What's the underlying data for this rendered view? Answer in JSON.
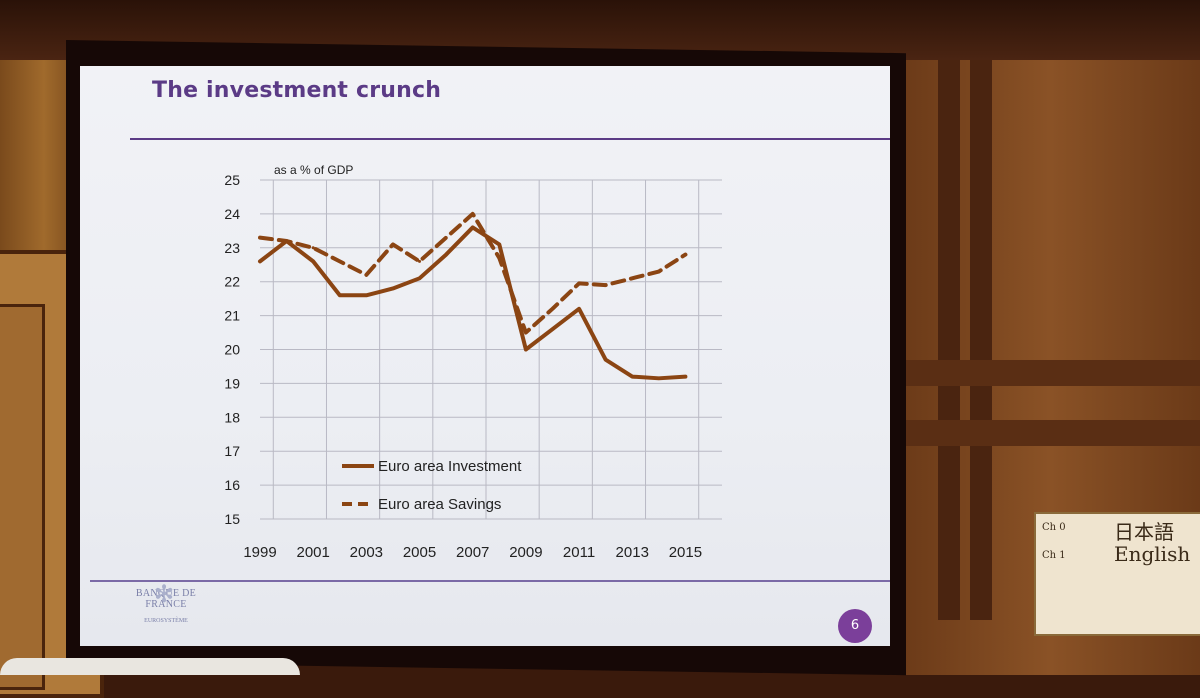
{
  "slide": {
    "title": "The investment crunch",
    "logo_text": "BANQUE DE FRANCE",
    "logo_sub": "EUROSYSTÈME",
    "page_number": "6"
  },
  "sign": {
    "ch0_label": "Ch 0",
    "ch0_lang": "日本語",
    "ch1_label": "Ch 1",
    "ch1_lang": "English"
  },
  "colors": {
    "series": "#8b4513",
    "title": "#5b3b86",
    "grid": "#b9b9c4"
  },
  "chart_data": {
    "type": "line",
    "title": "The investment crunch",
    "ylabel": "as a % of GDP",
    "xlabel": "",
    "ylim": [
      15,
      25
    ],
    "yticks": [
      "15",
      "16",
      "17",
      "18",
      "19",
      "20",
      "21",
      "22",
      "23",
      "24",
      "25"
    ],
    "xlim": [
      1999,
      2016
    ],
    "xticks": [
      "1999",
      "2001",
      "2003",
      "2005",
      "2007",
      "2009",
      "2011",
      "2013",
      "2015"
    ],
    "grid": true,
    "legend_position": "lower-left",
    "series": [
      {
        "name": "Euro area Investment",
        "style": "solid",
        "x": [
          1999,
          2000,
          2001,
          2002,
          2003,
          2004,
          2005,
          2006,
          2007,
          2008,
          2009,
          2010,
          2011,
          2012,
          2013,
          2014,
          2015
        ],
        "values": [
          22.6,
          23.2,
          22.6,
          21.6,
          21.6,
          21.8,
          22.1,
          22.8,
          23.6,
          23.1,
          20.0,
          20.6,
          21.2,
          19.7,
          19.2,
          19.15,
          19.2
        ]
      },
      {
        "name": "Euro area Savings",
        "style": "dashed",
        "x": [
          1999,
          2000,
          2001,
          2002,
          2003,
          2004,
          2005,
          2006,
          2007,
          2008,
          2009,
          2010,
          2011,
          2012,
          2013,
          2014,
          2015
        ],
        "values": [
          23.3,
          23.2,
          23.0,
          22.6,
          22.2,
          23.1,
          22.6,
          23.3,
          24.0,
          22.7,
          20.5,
          21.2,
          21.95,
          21.9,
          22.1,
          22.3,
          22.8
        ]
      }
    ]
  }
}
